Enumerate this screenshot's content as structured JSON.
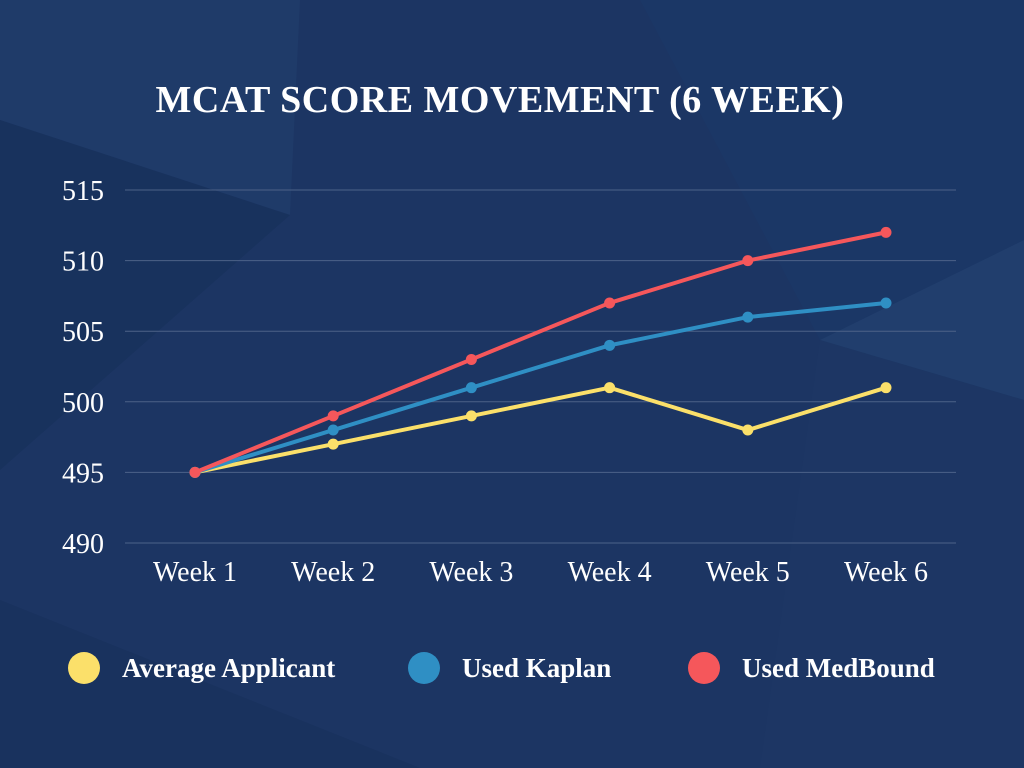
{
  "colors": {
    "background": "#1c3563",
    "grid": "#4d6288"
  },
  "chart_data": {
    "type": "line",
    "title": "MCAT SCORE MOVEMENT (6 WEEK)",
    "categories": [
      "Week 1",
      "Week 2",
      "Week 3",
      "Week 4",
      "Week 5",
      "Week 6"
    ],
    "ylim": [
      490,
      515
    ],
    "yticks": [
      "490",
      "495",
      "500",
      "505",
      "510",
      "515"
    ],
    "grid": true,
    "legend_position": "bottom",
    "series": [
      {
        "name": "Average Applicant",
        "color": "#fbe06a",
        "values": [
          495,
          497,
          499,
          501,
          498,
          501
        ]
      },
      {
        "name": "Used Kaplan",
        "color": "#2f8fc4",
        "values": [
          495,
          498,
          501,
          504,
          506,
          507
        ]
      },
      {
        "name": "Used MedBound",
        "color": "#f5575b",
        "values": [
          495,
          499,
          503,
          507,
          510,
          512
        ]
      }
    ]
  }
}
